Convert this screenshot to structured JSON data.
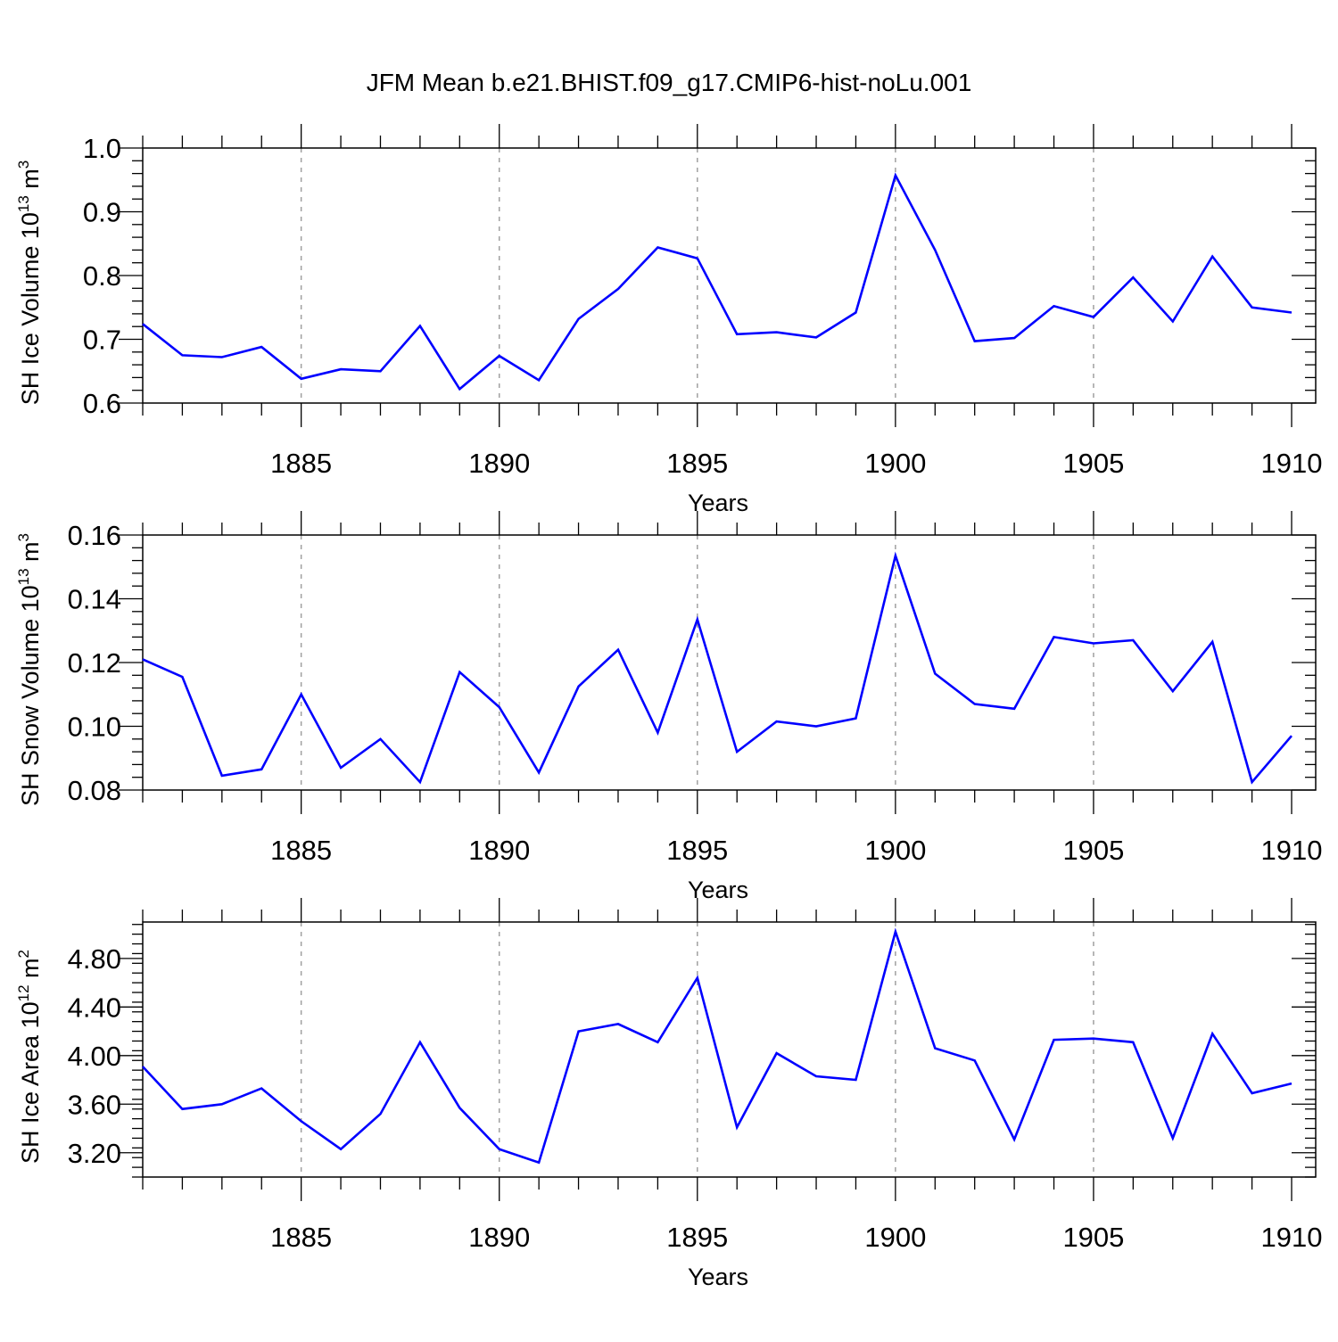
{
  "title": "JFM Mean b.e21.BHIST.f09_g17.CMIP6-hist-noLu.001",
  "colors": {
    "series": "#0000ff",
    "frame": "#000000",
    "grid": "#a0a0a0"
  },
  "chart_data": [
    {
      "type": "line",
      "ylabel": {
        "text": "SH Ice Volume 10",
        "exp": "13",
        "unit": " m",
        "unit_exp": "3"
      },
      "xlabel": "Years",
      "xlim": [
        1881,
        1910
      ],
      "ylim": [
        0.6,
        1.0
      ],
      "xticks": [
        1885,
        1890,
        1895,
        1900,
        1905,
        1910
      ],
      "yticks": [
        "0.6",
        "0.7",
        "0.8",
        "0.9",
        "1.0"
      ],
      "grid_x": true,
      "x": [
        1881,
        1882,
        1883,
        1884,
        1885,
        1886,
        1887,
        1888,
        1889,
        1890,
        1891,
        1892,
        1893,
        1894,
        1895,
        1896,
        1897,
        1898,
        1899,
        1900,
        1901,
        1902,
        1903,
        1904,
        1905,
        1906,
        1907,
        1908,
        1909,
        1910
      ],
      "y": [
        0.724,
        0.675,
        0.672,
        0.688,
        0.638,
        0.653,
        0.65,
        0.721,
        0.622,
        0.674,
        0.636,
        0.732,
        0.779,
        0.844,
        0.827,
        0.708,
        0.711,
        0.703,
        0.742,
        0.957,
        0.84,
        0.697,
        0.702,
        0.752,
        0.735,
        0.797,
        0.728,
        0.83,
        0.75,
        0.742
      ]
    },
    {
      "type": "line",
      "ylabel": {
        "text": "SH Snow Volume 10",
        "exp": "13",
        "unit": " m",
        "unit_exp": "3"
      },
      "xlabel": "Years",
      "xlim": [
        1881,
        1910
      ],
      "ylim": [
        0.08,
        0.16
      ],
      "xticks": [
        1885,
        1890,
        1895,
        1900,
        1905,
        1910
      ],
      "yticks": [
        "0.08",
        "0.10",
        "0.12",
        "0.14",
        "0.16"
      ],
      "grid_x": true,
      "x": [
        1881,
        1882,
        1883,
        1884,
        1885,
        1886,
        1887,
        1888,
        1889,
        1890,
        1891,
        1892,
        1893,
        1894,
        1895,
        1896,
        1897,
        1898,
        1899,
        1900,
        1901,
        1902,
        1903,
        1904,
        1905,
        1906,
        1907,
        1908,
        1909,
        1910
      ],
      "y": [
        0.121,
        0.1155,
        0.0845,
        0.0865,
        0.11,
        0.087,
        0.096,
        0.0825,
        0.117,
        0.106,
        0.0855,
        0.1125,
        0.124,
        0.098,
        0.1335,
        0.092,
        0.1015,
        0.1,
        0.1025,
        0.1535,
        0.1165,
        0.107,
        0.1055,
        0.128,
        0.126,
        0.127,
        0.111,
        0.1265,
        0.0825,
        0.097
      ]
    },
    {
      "type": "line",
      "ylabel": {
        "text": "SH Ice Area 10",
        "exp": "12",
        "unit": " m",
        "unit_exp": "2"
      },
      "xlabel": "Years",
      "xlim": [
        1881,
        1910
      ],
      "ylim": [
        3.0,
        5.1
      ],
      "xticks": [
        1885,
        1890,
        1895,
        1900,
        1905,
        1910
      ],
      "yticks": [
        "3.20",
        "3.60",
        "4.00",
        "4.40",
        "4.80"
      ],
      "grid_x": true,
      "x": [
        1881,
        1882,
        1883,
        1884,
        1885,
        1886,
        1887,
        1888,
        1889,
        1890,
        1891,
        1892,
        1893,
        1894,
        1895,
        1896,
        1897,
        1898,
        1899,
        1900,
        1901,
        1902,
        1903,
        1904,
        1905,
        1906,
        1907,
        1908,
        1909,
        1910
      ],
      "y": [
        3.91,
        3.56,
        3.6,
        3.73,
        3.46,
        3.23,
        3.52,
        4.11,
        3.57,
        3.23,
        3.12,
        4.2,
        4.26,
        4.11,
        4.64,
        3.41,
        4.02,
        3.83,
        3.8,
        5.02,
        4.06,
        3.96,
        3.31,
        4.13,
        4.14,
        4.11,
        3.32,
        4.18,
        3.69,
        3.77
      ]
    }
  ]
}
